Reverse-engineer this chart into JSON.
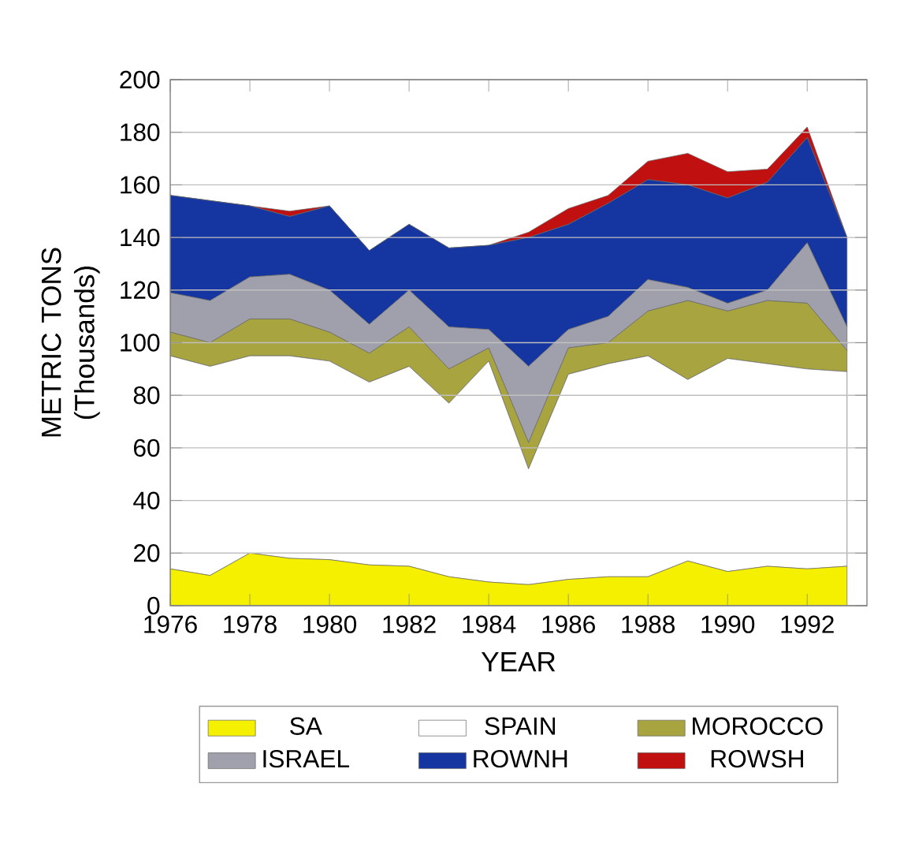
{
  "chart_data": {
    "type": "area",
    "stacked": true,
    "xlabel": "YEAR",
    "ylabel": "METRIC TONS (Thousands)",
    "x": [
      1976,
      1977,
      1978,
      1979,
      1980,
      1981,
      1982,
      1983,
      1984,
      1985,
      1986,
      1987,
      1988,
      1989,
      1990,
      1991,
      1992,
      1993
    ],
    "series": [
      {
        "name": "SA",
        "color": "#f5f000",
        "values": [
          14,
          11.5,
          20,
          18,
          17.5,
          15.5,
          15,
          11,
          9,
          8,
          10,
          11,
          11,
          17,
          13,
          15,
          14,
          15
        ]
      },
      {
        "name": "SPAIN",
        "color": "#ffffff",
        "values": [
          81,
          79.5,
          75,
          77,
          75.5,
          69.5,
          76,
          66,
          84,
          44,
          78,
          81,
          84,
          69,
          81,
          77,
          76,
          74
        ]
      },
      {
        "name": "MOROCCO",
        "color": "#a8a540",
        "values": [
          9,
          9,
          14,
          14,
          11,
          11,
          15,
          13,
          5,
          10,
          10,
          8,
          17,
          30,
          18,
          24,
          25,
          8
        ]
      },
      {
        "name": "ISRAEL",
        "color": "#a0a0ac",
        "values": [
          15,
          16,
          16,
          17,
          16,
          11,
          14,
          16,
          7,
          29,
          7,
          10,
          12,
          5,
          3,
          4,
          23,
          9
        ]
      },
      {
        "name": "ROWNH",
        "color": "#1535a0",
        "values": [
          37,
          38,
          27,
          22,
          32,
          28,
          25,
          30,
          32,
          49,
          40,
          43,
          38,
          39,
          40,
          41,
          40,
          34
        ]
      },
      {
        "name": "ROWSH",
        "color": "#c01010",
        "values": [
          0,
          0,
          0,
          2,
          0,
          0,
          0,
          0,
          0,
          2,
          6,
          3,
          7,
          12,
          10,
          5,
          4,
          0
        ]
      }
    ],
    "xlim": [
      1976,
      1993.5
    ],
    "ylim": [
      0,
      200
    ],
    "xticks": [
      1976,
      1978,
      1980,
      1982,
      1984,
      1986,
      1988,
      1990,
      1992
    ],
    "yticks": [
      0,
      20,
      40,
      60,
      80,
      100,
      120,
      140,
      160,
      180,
      200
    ],
    "grid": "y",
    "legend": "bottom"
  }
}
